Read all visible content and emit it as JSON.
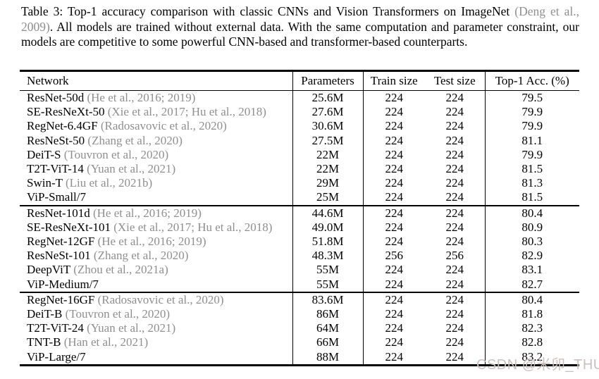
{
  "page": {
    "background": "#ffffff",
    "text_color": "#000000",
    "citation_color": "#8f8f8f"
  },
  "caption": {
    "lead": "Table 3: Top-1 accuracy comparison with classic CNNs and Vision Transformers on ImageNet ",
    "cite": "(Deng et al., 2009)",
    "tail": ". All models are trained without external data. With the same computation and parameter constraint, our models are competitive to some powerful CNN-based and transformer-based counterparts."
  },
  "table": {
    "headers": [
      "Network",
      "Parameters",
      "Train size",
      "Test size",
      "Top-1 Acc. (%)"
    ],
    "sections": [
      {
        "rows": [
          {
            "network": "ResNet-50d",
            "citation": "(He et al., 2016; 2019)",
            "parameters": "25.6M",
            "train": "224",
            "test": "224",
            "acc": "79.5"
          },
          {
            "network": "SE-ResNeXt-50",
            "citation": "(Xie et al., 2017; Hu et al., 2018)",
            "parameters": "27.6M",
            "train": "224",
            "test": "224",
            "acc": "79.9"
          },
          {
            "network": "RegNet-6.4GF",
            "citation": "(Radosavovic et al., 2020)",
            "parameters": "30.6M",
            "train": "224",
            "test": "224",
            "acc": "79.9"
          },
          {
            "network": "ResNeSt-50",
            "citation": "(Zhang et al., 2020)",
            "parameters": "27.5M",
            "train": "224",
            "test": "224",
            "acc": "81.1"
          },
          {
            "network": "DeiT-S",
            "citation": "(Touvron et al., 2020)",
            "parameters": "22M",
            "train": "224",
            "test": "224",
            "acc": "79.9"
          },
          {
            "network": "T2T-ViT-14",
            "citation": "(Yuan et al., 2021)",
            "parameters": "22M",
            "train": "224",
            "test": "224",
            "acc": "81.5"
          },
          {
            "network": "Swin-T",
            "citation": "(Liu et al., 2021b)",
            "parameters": "29M",
            "train": "224",
            "test": "224",
            "acc": "81.3"
          },
          {
            "network": "ViP-Small/7",
            "citation": "",
            "parameters": "25M",
            "train": "224",
            "test": "224",
            "acc": "81.5"
          }
        ]
      },
      {
        "rows": [
          {
            "network": "ResNet-101d",
            "citation": "(He et al., 2016; 2019)",
            "parameters": "44.6M",
            "train": "224",
            "test": "224",
            "acc": "80.4"
          },
          {
            "network": "SE-ResNeXt-101",
            "citation": "(Xie et al., 2017; Hu et al., 2018)",
            "parameters": "49.0M",
            "train": "224",
            "test": "224",
            "acc": "80.9"
          },
          {
            "network": "RegNet-12GF",
            "citation": "(He et al., 2016; 2019)",
            "parameters": "51.8M",
            "train": "224",
            "test": "224",
            "acc": "80.3"
          },
          {
            "network": "ResNeSt-101",
            "citation": "(Zhang et al., 2020)",
            "parameters": "48.3M",
            "train": "256",
            "test": "256",
            "acc": "82.9"
          },
          {
            "network": "DeepViT",
            "citation": "(Zhou et al., 2021a)",
            "parameters": "55M",
            "train": "224",
            "test": "224",
            "acc": "83.1"
          },
          {
            "network": "ViP-Medium/7",
            "citation": "",
            "parameters": "55M",
            "train": "224",
            "test": "224",
            "acc": "82.7"
          }
        ]
      },
      {
        "rows": [
          {
            "network": "RegNet-16GF",
            "citation": "(Radosavovic et al., 2020)",
            "parameters": "83.6M",
            "train": "224",
            "test": "224",
            "acc": "80.4"
          },
          {
            "network": "DeiT-B",
            "citation": "(Touvron et al., 2020)",
            "parameters": "86M",
            "train": "224",
            "test": "224",
            "acc": "81.8"
          },
          {
            "network": "T2T-ViT-24",
            "citation": "(Yuan et al., 2021)",
            "parameters": "64M",
            "train": "224",
            "test": "224",
            "acc": "82.3"
          },
          {
            "network": "TNT-B",
            "citation": "(Han et al., 2021)",
            "parameters": "66M",
            "train": "224",
            "test": "224",
            "acc": "82.8"
          },
          {
            "network": "ViP-Large/7",
            "citation": "",
            "parameters": "88M",
            "train": "224",
            "test": "224",
            "acc": "83.2"
          }
        ]
      }
    ]
  },
  "watermark": {
    "text": "CSDN @米卯_THU",
    "color": "#cdbfbf"
  }
}
